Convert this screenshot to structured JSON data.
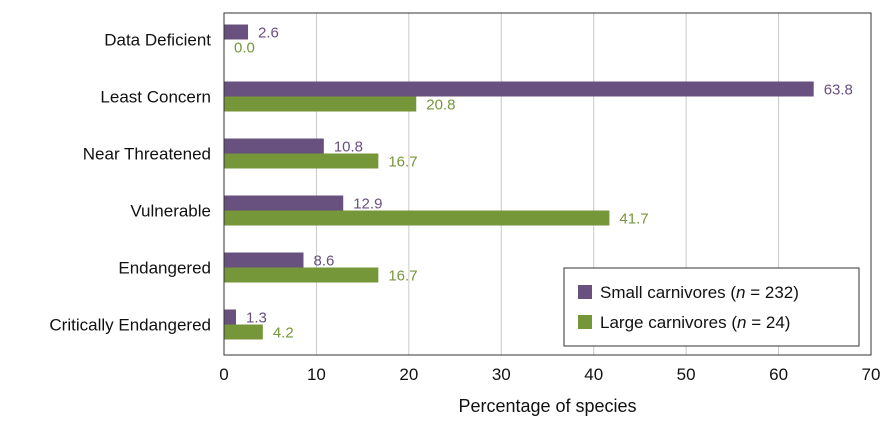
{
  "chart_data": {
    "type": "bar",
    "orientation": "horizontal",
    "categories": [
      "Data Deficient",
      "Least Concern",
      "Near Threatened",
      "Vulnerable",
      "Endangered",
      "Critically Endangered"
    ],
    "series": [
      {
        "name": "Small carnivores (n = 232)",
        "name_prefix": "Small carnivores (",
        "name_italic": "n",
        "name_suffix": " = 232)",
        "color": "#68507f",
        "values": [
          2.6,
          63.8,
          10.8,
          12.9,
          8.6,
          1.3
        ],
        "labels": [
          "2.6",
          "63.8",
          "10.8",
          "12.9",
          "8.6",
          "1.3"
        ]
      },
      {
        "name": "Large carnivores (n = 24)",
        "name_prefix": "Large carnivores (",
        "name_italic": "n",
        "name_suffix": " = 24)",
        "color": "#76963a",
        "values": [
          0.0,
          20.8,
          16.7,
          41.7,
          16.7,
          4.2
        ],
        "labels": [
          "0.0",
          "20.8",
          "16.7",
          "41.7",
          "16.7",
          "4.2"
        ]
      }
    ],
    "xlabel": "Percentage of species",
    "xlim": [
      0,
      70
    ],
    "xticks": [
      0,
      10,
      20,
      30,
      40,
      50,
      60,
      70
    ],
    "xtick_labels": [
      "0",
      "10",
      "20",
      "30",
      "40",
      "50",
      "60",
      "70"
    ],
    "grid": "vertical",
    "legend_position": "bottom-right"
  }
}
